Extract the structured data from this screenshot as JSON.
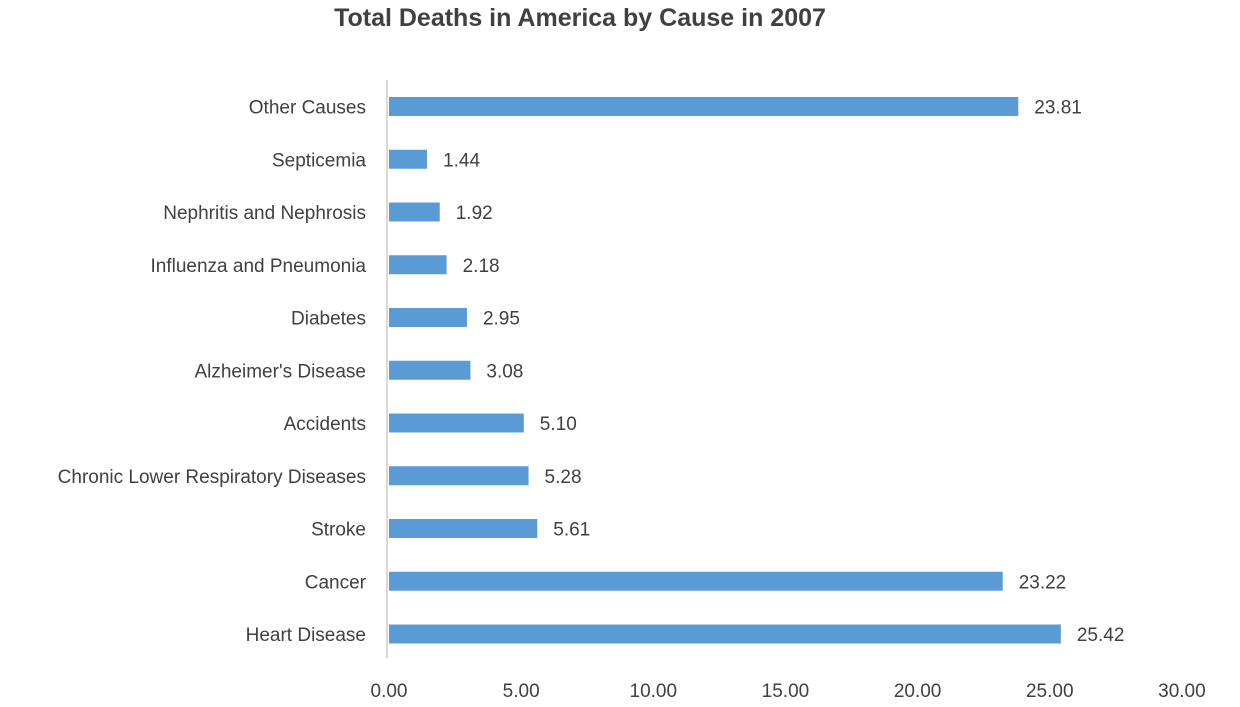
{
  "chart_data": {
    "type": "bar",
    "orientation": "horizontal",
    "title": "Total Deaths in America by Cause in 2007",
    "xlabel": "",
    "ylabel": "",
    "categories": [
      "Heart Disease",
      "Cancer",
      "Stroke",
      "Chronic Lower Respiratory Diseases",
      "Accidents",
      "Alzheimer's Disease",
      "Diabetes",
      "Influenza and Pneumonia",
      "Nephritis and Nephrosis",
      "Septicemia",
      "Other Causes"
    ],
    "values": [
      25.42,
      23.22,
      5.61,
      5.28,
      5.1,
      3.08,
      2.95,
      2.18,
      1.92,
      1.44,
      23.81
    ],
    "value_labels": [
      "25.42",
      "23.22",
      "5.61",
      "5.28",
      "5.10",
      "3.08",
      "2.95",
      "2.18",
      "1.92",
      "1.44",
      "23.81"
    ],
    "xlim": [
      0,
      30
    ],
    "x_ticks": [
      0,
      5,
      10,
      15,
      20,
      25,
      30
    ],
    "x_tick_labels": [
      "0.00",
      "5.00",
      "10.00",
      "15.00",
      "20.00",
      "25.00",
      "30.00"
    ],
    "category_order": "bottom-to-top",
    "grid": false,
    "legend": false,
    "colors": {
      "bar": "#5b9bd5",
      "axis": "#d9d9d9",
      "text": "#404040"
    }
  }
}
